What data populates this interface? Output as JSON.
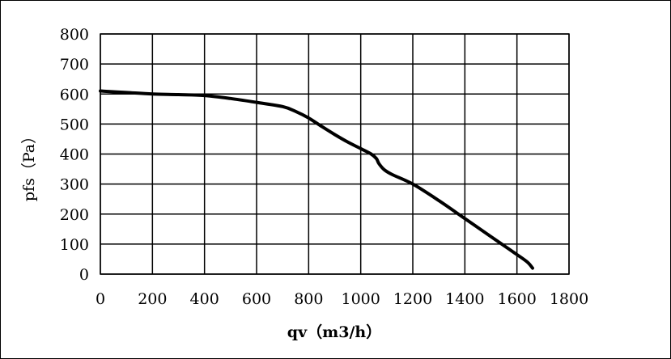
{
  "chart_data": {
    "type": "line",
    "xlabel": "qv（m3/h）",
    "ylabel": "pfs（Pa）",
    "xlim": [
      0,
      1800
    ],
    "ylim": [
      0,
      800
    ],
    "xticks": [
      0,
      200,
      400,
      600,
      800,
      1000,
      1200,
      1400,
      1600,
      1800
    ],
    "yticks": [
      0,
      100,
      200,
      300,
      400,
      500,
      600,
      700,
      800
    ],
    "grid": true,
    "legend": "none",
    "line_color": "#000000",
    "series": [
      {
        "x": [
          0,
          100,
          200,
          300,
          400,
          500,
          600,
          700,
          750,
          800,
          850,
          900,
          950,
          1000,
          1040,
          1060,
          1070,
          1090,
          1120,
          1200,
          1300,
          1400,
          1500,
          1550,
          1600,
          1640,
          1660
        ],
        "y": [
          610,
          605,
          600,
          598,
          595,
          585,
          572,
          558,
          542,
          520,
          492,
          465,
          440,
          418,
          400,
          385,
          368,
          348,
          332,
          300,
          245,
          185,
          125,
          95,
          65,
          40,
          20
        ]
      }
    ]
  }
}
